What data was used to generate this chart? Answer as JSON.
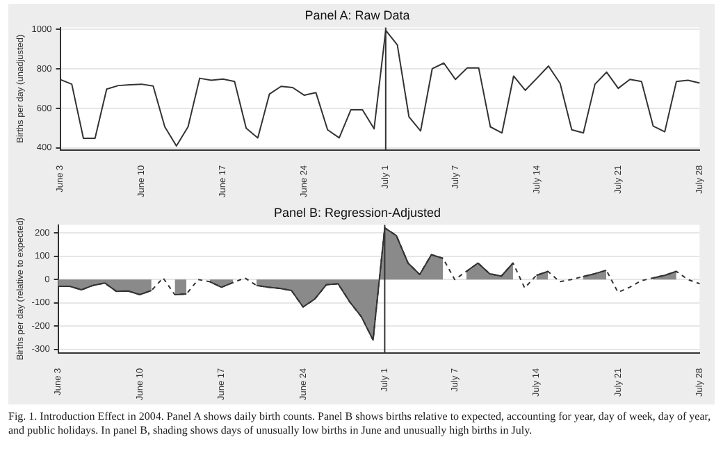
{
  "chart_data": [
    {
      "type": "line",
      "title": "Panel A: Raw Data",
      "ylabel": "Births per day (unadjusted)",
      "categories": [
        "June 3",
        null,
        null,
        null,
        null,
        null,
        null,
        "June 10",
        null,
        null,
        null,
        null,
        null,
        null,
        "June 17",
        null,
        null,
        null,
        null,
        null,
        null,
        "June 24",
        null,
        null,
        null,
        null,
        null,
        null,
        "July 1",
        null,
        null,
        null,
        null,
        null,
        "July 7",
        null,
        null,
        null,
        null,
        null,
        null,
        "July 14",
        null,
        null,
        null,
        null,
        null,
        null,
        "July 21",
        null,
        null,
        null,
        null,
        null,
        null,
        "July 28"
      ],
      "series": [
        {
          "color": "#333333",
          "values": [
            747,
            723,
            449,
            449,
            698,
            716,
            720,
            723,
            714,
            507,
            410,
            507,
            753,
            743,
            749,
            737,
            500,
            451,
            673,
            712,
            706,
            667,
            680,
            492,
            451,
            593,
            593,
            497,
            996,
            922,
            558,
            486,
            801,
            830,
            747,
            805,
            805,
            507,
            476,
            764,
            692,
            753,
            815,
            727,
            492,
            476,
            723,
            784,
            702,
            747,
            737,
            511,
            482,
            737,
            743,
            729
          ]
        }
      ],
      "ylim": [
        390,
        1010
      ],
      "yticks": [
        400,
        600,
        800,
        1000
      ],
      "grid": "y",
      "legend": false,
      "marker": "none",
      "ref_lines": [
        {
          "axis": "x",
          "value": "July 1",
          "color": "#333333"
        }
      ]
    },
    {
      "type": "line",
      "title": "Panel B: Regression-Adjusted",
      "ylabel": "Births per day (relative to expected)",
      "categories": [
        "June 3",
        null,
        null,
        null,
        null,
        null,
        null,
        "June 10",
        null,
        null,
        null,
        null,
        null,
        null,
        "June 17",
        null,
        null,
        null,
        null,
        null,
        null,
        "June 24",
        null,
        null,
        null,
        null,
        null,
        null,
        "July 1",
        null,
        null,
        null,
        null,
        null,
        "July 7",
        null,
        null,
        null,
        null,
        null,
        null,
        "July 14",
        null,
        null,
        null,
        null,
        null,
        null,
        "July 21",
        null,
        null,
        null,
        null,
        null,
        null,
        "July 28"
      ],
      "series": [
        {
          "type": "line",
          "line_style": "dashed",
          "color": "#333333",
          "values": [
            -29,
            -29,
            -44,
            -25,
            -15,
            -51,
            -49,
            -65,
            -47,
            7,
            -65,
            -62,
            0,
            -9,
            -33,
            -13,
            7,
            -25,
            -33,
            -38,
            -47,
            -118,
            -84,
            -22,
            -18,
            -96,
            -160,
            -260,
            222,
            189,
            71,
            22,
            107,
            91,
            0,
            35,
            71,
            25,
            15,
            71,
            -36,
            18,
            35,
            -9,
            0,
            13,
            25,
            40,
            -55,
            -33,
            -5,
            7,
            18,
            35,
            0,
            -18
          ]
        },
        {
          "type": "area",
          "color": "#8a8a8a",
          "values": [
            -29,
            -29,
            -44,
            -25,
            -15,
            -51,
            -49,
            -65,
            -47,
            null,
            -65,
            -62,
            null,
            -9,
            -33,
            -13,
            null,
            -25,
            -33,
            -38,
            -47,
            -118,
            -84,
            -22,
            -18,
            -96,
            -160,
            -260,
            222,
            189,
            71,
            22,
            107,
            91,
            null,
            35,
            71,
            25,
            15,
            71,
            null,
            18,
            35,
            null,
            null,
            13,
            25,
            40,
            null,
            null,
            null,
            7,
            18,
            35,
            null,
            null
          ]
        }
      ],
      "ylim": [
        -315,
        235
      ],
      "yticks": [
        -300,
        -200,
        -100,
        0,
        100,
        200
      ],
      "grid": "y",
      "legend": false,
      "marker": "none",
      "ref_lines": [
        {
          "axis": "x",
          "value": "July 1",
          "color": "#333333"
        }
      ],
      "annotations": [
        "Fig. 1. Introduction Effect in 2004. Panel A shows daily birth counts. Panel B shows births relative to expected, accounting for year, day of week, day of year, and public holidays. In panel B, shading shows days of unusually low births in June and unusually high births in July."
      ]
    }
  ]
}
